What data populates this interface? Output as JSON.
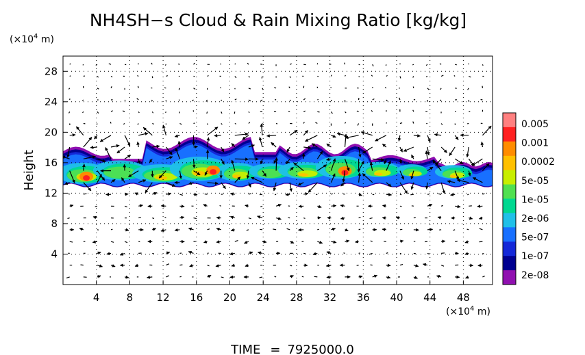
{
  "chart_data": {
    "type": "heatmap",
    "title": "NH4SH−s Cloud & Rain Mixing Ratio [kg/kg]",
    "ylabel": "Height",
    "y_scale_label": "(×10",
    "y_scale_exp": "4",
    "y_scale_unit": " m)",
    "x_scale_label": "(×10",
    "x_scale_exp": "4",
    "x_scale_unit": " m)",
    "xlim": [
      0,
      51.5
    ],
    "ylim": [
      0,
      30
    ],
    "x_ticks": [
      4,
      8,
      12,
      16,
      20,
      24,
      28,
      32,
      36,
      40,
      44,
      48
    ],
    "y_ticks": [
      4,
      8,
      12,
      16,
      20,
      24,
      28
    ],
    "x_tick_labels": [
      "4",
      "8",
      "12",
      "16",
      "20",
      "24",
      "28",
      "32",
      "36",
      "40",
      "44",
      "48"
    ],
    "y_tick_labels": [
      "4",
      "8",
      "12",
      "16",
      "20",
      "24",
      "28"
    ],
    "grid": true,
    "colorbar": {
      "labels": [
        "0.005",
        "0.001",
        "0.0002",
        "5e-05",
        "1e-05",
        "2e-06",
        "5e-07",
        "1e-07",
        "2e-08"
      ],
      "colors": [
        "#ff8080",
        "#ff2020",
        "#ff8c00",
        "#ffc000",
        "#c8ee00",
        "#50e050",
        "#00d890",
        "#20c0e8",
        "#1870ff",
        "#1428d8",
        "#000090",
        "#9010b0"
      ]
    },
    "cloud_layer": {
      "base_height": 13,
      "top_height_range": [
        16,
        19.5
      ],
      "peak_levels": [
        "0.0002",
        "5e-05"
      ]
    },
    "time_label": "TIME",
    "time_eq": "=",
    "time_value": "7925000.0"
  }
}
